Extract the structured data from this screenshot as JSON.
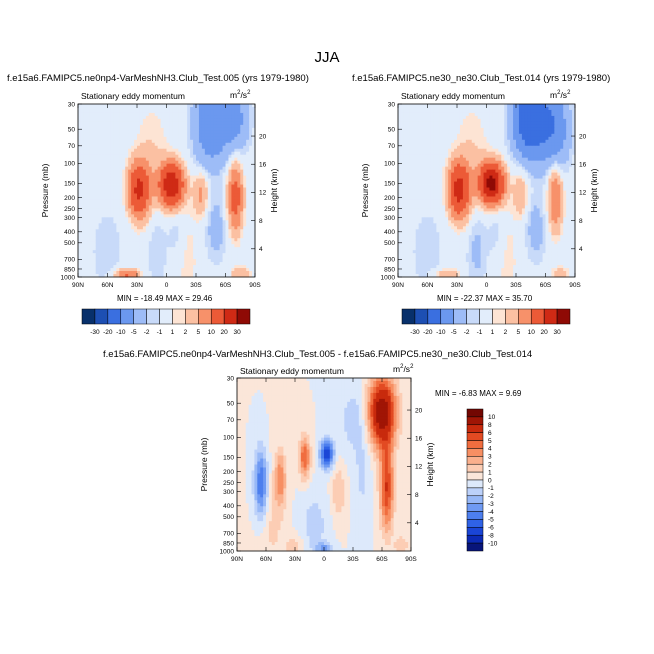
{
  "page": {
    "title": "JJA"
  },
  "panels": [
    {
      "title": "f.e15a6.FAMIPC5.ne0np4-VarMeshNH3.Club_Test.005 (yrs 1979-1980)",
      "subtitle": "Stationary eddy momentum",
      "units": "m2/s2",
      "minmax": "MIN = -18.49   MAX = 29.46"
    },
    {
      "title": "f.e15a6.FAMIPC5.ne30_ne30.Club_Test.014 (yrs 1979-1980)",
      "subtitle": "Stationary eddy momentum",
      "units": "m2/s2",
      "minmax": "MIN = -22.37   MAX = 35.70"
    },
    {
      "title": "f.e15a6.FAMIPC5.ne0np4-VarMeshNH3.Club_Test.005 - f.e15a6.FAMIPC5.ne30_ne30.Club_Test.014",
      "subtitle": "Stationary eddy momentum",
      "units": "m2/s2",
      "minmax": "MIN = -6.83   MAX = 9.69"
    }
  ],
  "chart_data": [
    {
      "type": "heatmap",
      "panel": 1,
      "ylabel": "Pressure (mb)",
      "right_ylabel": "Height (km)",
      "x_ticks": [
        "90N",
        "60N",
        "30N",
        "0",
        "30S",
        "60S",
        "90S"
      ],
      "y_ticks": [
        "30",
        "50",
        "70",
        "100",
        "150",
        "200",
        "250",
        "300",
        "400",
        "500",
        "700",
        "850",
        "1000"
      ],
      "height_ticks": [
        "4",
        "8",
        "12",
        "16",
        "20"
      ],
      "levels": [
        "-30",
        "-20",
        "-10",
        "-5",
        "-2",
        "-1",
        "1",
        "2",
        "5",
        "10",
        "20",
        "30"
      ],
      "colors": [
        "#08306b",
        "#1d4fb3",
        "#3a6fe0",
        "#6b98ef",
        "#9dbcf7",
        "#c8daf9",
        "#e2edfb",
        "#fde4d4",
        "#fbc0a2",
        "#f7916a",
        "#ec5a37",
        "#cf2a15",
        "#8f0a05"
      ],
      "min": -18.49,
      "max": 29.46
    },
    {
      "type": "heatmap",
      "panel": 2,
      "ylabel": "Pressure (mb)",
      "right_ylabel": "Height (km)",
      "x_ticks": [
        "90N",
        "60N",
        "30N",
        "0",
        "30S",
        "60S",
        "90S"
      ],
      "y_ticks": [
        "30",
        "50",
        "70",
        "100",
        "150",
        "200",
        "250",
        "300",
        "400",
        "500",
        "700",
        "850",
        "1000"
      ],
      "height_ticks": [
        "4",
        "8",
        "12",
        "16",
        "20"
      ],
      "levels": [
        "-30",
        "-20",
        "-10",
        "-5",
        "-2",
        "-1",
        "1",
        "2",
        "5",
        "10",
        "20",
        "30"
      ],
      "colors": [
        "#08306b",
        "#1d4fb3",
        "#3a6fe0",
        "#6b98ef",
        "#9dbcf7",
        "#c8daf9",
        "#e2edfb",
        "#fde4d4",
        "#fbc0a2",
        "#f7916a",
        "#ec5a37",
        "#cf2a15",
        "#8f0a05"
      ],
      "min": -22.37,
      "max": 35.7
    },
    {
      "type": "heatmap",
      "panel": 3,
      "ylabel": "Pressure (mb)",
      "right_ylabel": "Height (km)",
      "x_ticks": [
        "90N",
        "60N",
        "30N",
        "0",
        "30S",
        "60S",
        "90S"
      ],
      "y_ticks": [
        "30",
        "50",
        "70",
        "100",
        "150",
        "200",
        "250",
        "300",
        "400",
        "500",
        "700",
        "850",
        "1000"
      ],
      "height_ticks": [
        "4",
        "8",
        "12",
        "16",
        "20"
      ],
      "levels": [
        "-10",
        "-8",
        "-6",
        "-5",
        "-4",
        "-3",
        "-2",
        "-1",
        "0",
        "1",
        "2",
        "3",
        "4",
        "5",
        "6",
        "8",
        "10"
      ],
      "colors": [
        "#08157a",
        "#0c2ab5",
        "#1a45d6",
        "#2f62e6",
        "#4d7fee",
        "#6f9af3",
        "#97b8f7",
        "#bcd1fa",
        "#dde9fb",
        "#fbe6d9",
        "#fccdb4",
        "#fab08d",
        "#f78f63",
        "#f06d3f",
        "#e24a22",
        "#c82a0d",
        "#a01505",
        "#730702"
      ],
      "min": -6.83,
      "max": 9.69
    }
  ]
}
